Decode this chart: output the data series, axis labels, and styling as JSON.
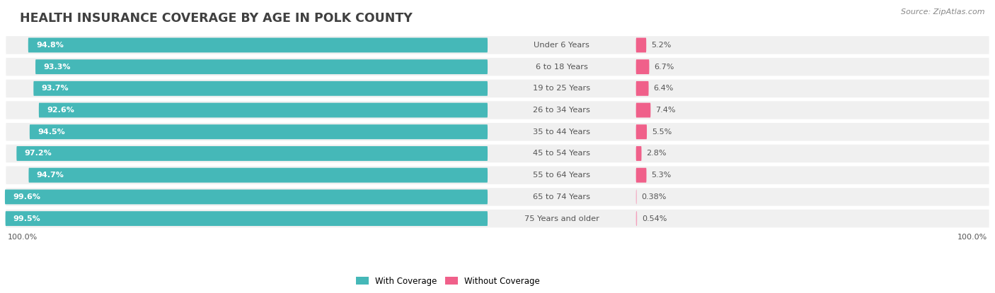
{
  "title": "HEALTH INSURANCE COVERAGE BY AGE IN POLK COUNTY",
  "source": "Source: ZipAtlas.com",
  "categories": [
    "Under 6 Years",
    "6 to 18 Years",
    "19 to 25 Years",
    "26 to 34 Years",
    "35 to 44 Years",
    "45 to 54 Years",
    "55 to 64 Years",
    "65 to 74 Years",
    "75 Years and older"
  ],
  "with_coverage": [
    94.8,
    93.3,
    93.7,
    92.6,
    94.5,
    97.2,
    94.7,
    99.6,
    99.5
  ],
  "without_coverage": [
    5.2,
    6.7,
    6.4,
    7.4,
    5.5,
    2.8,
    5.3,
    0.38,
    0.54
  ],
  "with_coverage_color": "#45b8b8",
  "without_coverage_color": [
    "#f0608a",
    "#f0608a",
    "#f0608a",
    "#f0608a",
    "#f0608a",
    "#f0608a",
    "#f0608a",
    "#f4a0bc",
    "#f4a0bc"
  ],
  "row_bg_color": "#f0f0f0",
  "row_border_color": "#ffffff",
  "title_color": "#404040",
  "label_color": "#555555",
  "pct_label_color_left": "#ffffff",
  "pct_label_color_right": "#555555",
  "source_color": "#888888",
  "x_axis_label": "100.0%",
  "legend_with": "With Coverage",
  "legend_without": "Without Coverage",
  "fig_width": 14.06,
  "fig_height": 4.15,
  "dpi": 100
}
